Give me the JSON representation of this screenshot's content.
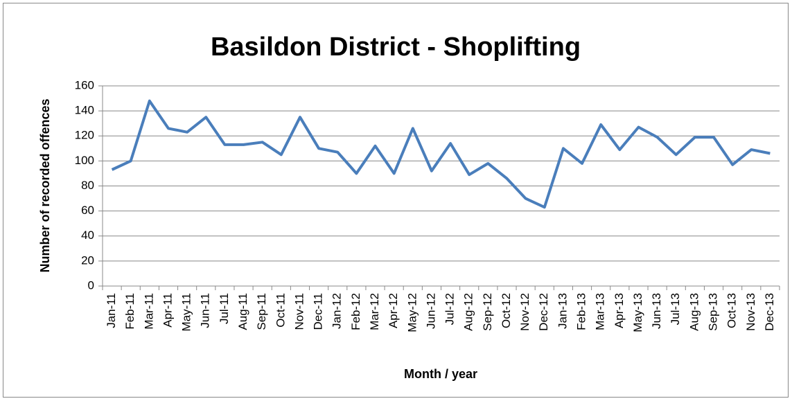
{
  "chart_data": {
    "type": "line",
    "title": "Basildon District - Shoplifting",
    "x_label": "Month / year",
    "y_label": "Number of recorded offences",
    "categories": [
      "Jan-11",
      "Feb-11",
      "Mar-11",
      "Apr-11",
      "May-11",
      "Jun-11",
      "Jul-11",
      "Aug-11",
      "Sep-11",
      "Oct-11",
      "Nov-11",
      "Dec-11",
      "Jan-12",
      "Feb-12",
      "Mar-12",
      "Apr-12",
      "May-12",
      "Jun-12",
      "Jul-12",
      "Aug-12",
      "Sep-12",
      "Oct-12",
      "Nov-12",
      "Dec-12",
      "Jan-13",
      "Feb-13",
      "Mar-13",
      "Apr-13",
      "May-13",
      "Jun-13",
      "Jul-13",
      "Aug-13",
      "Sep-13",
      "Oct-13",
      "Nov-13",
      "Dec-13"
    ],
    "values": [
      93,
      100,
      148,
      126,
      123,
      135,
      113,
      113,
      115,
      105,
      135,
      110,
      107,
      90,
      112,
      90,
      126,
      92,
      114,
      89,
      98,
      86,
      70,
      63,
      110,
      98,
      129,
      109,
      127,
      119,
      105,
      119,
      119,
      97,
      109,
      106
    ],
    "color": "#4a7ebb",
    "ylim": [
      0,
      160
    ],
    "yticks": [
      0,
      20,
      40,
      60,
      80,
      100,
      120,
      140,
      160
    ],
    "grid": true
  }
}
